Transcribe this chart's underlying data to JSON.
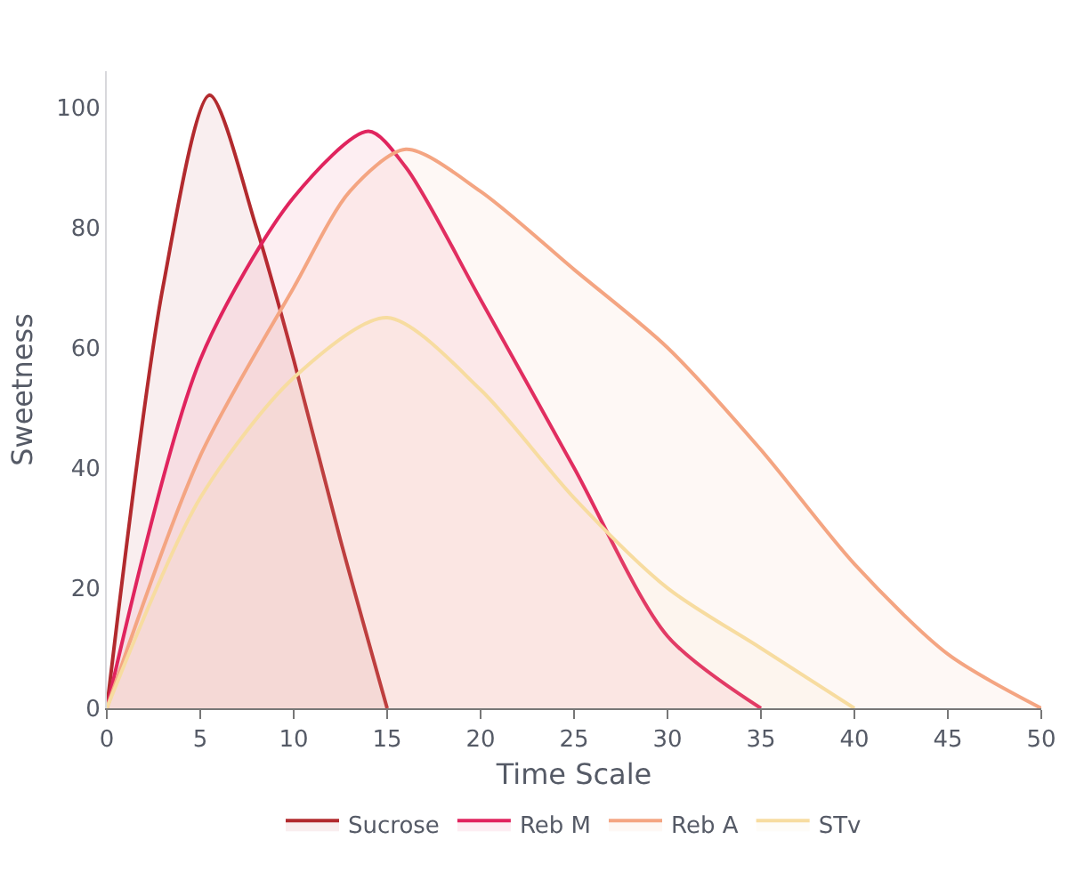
{
  "chart_data": {
    "type": "area",
    "xlabel": "Time Scale",
    "ylabel": "Sweetness",
    "xlim": [
      0,
      50
    ],
    "xticks": [
      0,
      5,
      10,
      15,
      20,
      25,
      30,
      35,
      40,
      45,
      50
    ],
    "ylim": [
      0,
      106
    ],
    "yticks": [
      0,
      20,
      40,
      60,
      80,
      100
    ],
    "grid": false,
    "legend": "bottom",
    "marker": "none",
    "line_style": "solid",
    "series": [
      {
        "name": "Sucrose",
        "color": "#b22a2e",
        "x": [
          0,
          3,
          5.5,
          8,
          10,
          12.5,
          15
        ],
        "values": [
          0,
          70,
          102,
          80,
          58,
          28,
          0
        ]
      },
      {
        "name": "Reb M",
        "color": "#e0245e",
        "x": [
          0,
          5,
          10,
          14,
          16,
          20,
          25,
          30,
          35
        ],
        "values": [
          0,
          58,
          85,
          96,
          90,
          68,
          40,
          12,
          0
        ]
      },
      {
        "name": "Reb A",
        "color": "#f4a582",
        "x": [
          0,
          5,
          10,
          13,
          16,
          20,
          25,
          30,
          35,
          40,
          45,
          50
        ],
        "values": [
          0,
          42,
          70,
          86,
          93,
          86,
          73,
          60,
          43,
          24,
          9,
          0
        ]
      },
      {
        "name": "STv",
        "color": "#f7dca0",
        "x": [
          0,
          5,
          10,
          15,
          20,
          25,
          30,
          35,
          40
        ],
        "values": [
          0,
          35,
          55,
          65,
          53,
          35,
          20,
          10,
          0
        ]
      }
    ]
  }
}
